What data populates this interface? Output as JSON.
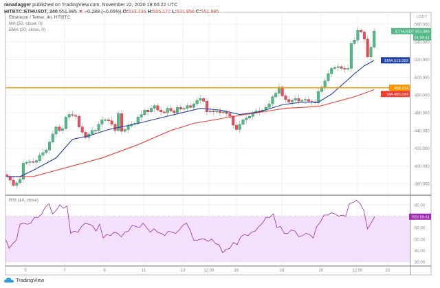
{
  "header": {
    "publisher": "ranadagger",
    "published_text": "published on TradingView.com, November 22, 2020 18:00:22 UTC",
    "symbol": "HITBTC:ETHUSDT, 240",
    "last": "551.985",
    "change": "−0.288 (−0.05%)",
    "o_label": "O:",
    "o": "533.736",
    "h_label": "H:",
    "h": "555.177",
    "l_label": "L:",
    "l": "531.856",
    "c_label": "C:",
    "c": "551.985"
  },
  "legend": {
    "title": "Ethereum / Tether, 4h, HITBTC",
    "ma": "MA (50, close, 0)",
    "ema": "EMA (20, close, 0)",
    "rsi": "RSI (14, close)"
  },
  "price_axis": {
    "unit": "USDT",
    "ticks": [
      380,
      400,
      420,
      440,
      460,
      480,
      500,
      520,
      540,
      560
    ],
    "tick_labels": [
      "380.000",
      "400.000",
      "420.000",
      "440.000",
      "460.000",
      "480.000",
      "500.000",
      "520.000",
      "540.000",
      "560.000"
    ],
    "range": [
      370,
      570
    ]
  },
  "rsi_axis": {
    "ticks": [
      30,
      40,
      50,
      60,
      70,
      80
    ],
    "tick_labels": [
      "30.00",
      "40.00",
      "50.00",
      "60.00",
      "70.00",
      "80.00"
    ],
    "band": [
      30,
      70
    ]
  },
  "time_axis": {
    "labels": [
      "5",
      "7",
      "9",
      "11",
      "13",
      "12:00",
      "16",
      "18",
      "20",
      "12:00",
      "23"
    ]
  },
  "badges": {
    "last_label": "ETHUSDT",
    "last_value": "551.985",
    "countdown": "01:59:41",
    "ema_label": "EMA",
    "ema_value": "519.093",
    "hline_value": "488.134",
    "ma_label": "MA",
    "ma_value": "485.094",
    "rsi_label": "RSI",
    "rsi_value": "69.61"
  },
  "colors": {
    "up": "#53b987",
    "down": "#eb4d5c",
    "ema": "#1e3fa0",
    "ma": "#f23b30",
    "hline": "#ff9800",
    "rsi": "#9c27b0",
    "rsi_band": "#f3e0fb"
  },
  "chart_data": {
    "type": "candlestick",
    "interval": "4h",
    "closes": [
      388,
      384,
      378,
      381,
      385,
      403,
      404,
      405,
      404,
      406,
      412,
      415,
      418,
      427,
      436,
      444,
      440,
      442,
      455,
      458,
      457,
      456,
      444,
      438,
      432,
      436,
      440,
      440,
      447,
      452,
      452,
      451,
      447,
      440,
      459,
      439,
      441,
      445,
      447,
      448,
      455,
      458,
      463,
      461,
      465,
      468,
      463,
      461,
      460,
      465,
      462,
      460,
      466,
      464,
      465,
      468,
      466,
      470,
      474,
      476,
      473,
      461,
      462,
      461,
      462,
      460,
      461,
      459,
      456,
      446,
      441,
      447,
      452,
      454,
      456,
      460,
      462,
      461,
      463,
      466,
      470,
      478,
      482,
      489,
      479,
      475,
      472,
      474,
      476,
      473,
      474,
      475,
      473,
      472,
      471,
      484,
      489,
      496,
      504,
      510,
      511,
      512,
      510,
      509,
      510,
      538,
      542,
      553,
      551,
      543,
      523,
      534,
      552
    ],
    "first_open": 390,
    "ma50": [
      [
        0,
        388
      ],
      [
        8,
        388
      ],
      [
        19,
        399
      ],
      [
        29,
        409
      ],
      [
        40,
        424
      ],
      [
        50,
        440
      ],
      [
        57,
        448
      ],
      [
        71,
        457
      ],
      [
        85,
        465
      ],
      [
        95,
        467
      ],
      [
        106,
        478
      ],
      [
        112,
        486
      ]
    ],
    "ema20": [
      [
        0,
        388
      ],
      [
        4,
        388
      ],
      [
        8,
        395
      ],
      [
        15,
        409
      ],
      [
        20,
        430
      ],
      [
        25,
        434
      ],
      [
        31,
        441
      ],
      [
        40,
        448
      ],
      [
        50,
        457
      ],
      [
        59,
        465
      ],
      [
        65,
        463
      ],
      [
        71,
        458
      ],
      [
        77,
        461
      ],
      [
        84,
        469
      ],
      [
        90,
        472
      ],
      [
        95,
        472
      ],
      [
        99,
        481
      ],
      [
        103,
        494
      ],
      [
        106,
        504
      ],
      [
        109,
        513
      ],
      [
        112,
        519
      ]
    ],
    "hline": 488.134,
    "rsi": [
      50,
      42,
      46,
      49,
      63,
      64,
      63,
      64,
      69,
      69,
      72,
      78,
      81,
      72,
      75,
      80,
      77,
      79,
      55,
      57,
      56,
      61,
      64,
      63,
      62,
      57,
      63,
      51,
      54,
      53,
      56,
      55,
      52,
      56,
      57,
      62,
      61,
      60,
      64,
      60,
      56,
      59,
      56,
      55,
      53,
      57,
      56,
      55,
      58,
      62,
      64,
      58,
      49,
      49,
      50,
      50,
      48,
      50,
      46,
      45,
      38,
      41,
      42,
      47,
      45,
      52,
      54,
      53,
      56,
      57,
      61,
      64,
      69,
      69,
      72,
      60,
      61,
      55,
      55,
      58,
      57,
      52,
      53,
      55,
      54,
      51,
      61,
      65,
      71,
      71,
      73,
      72,
      70,
      71,
      70,
      81,
      82,
      84,
      81,
      75,
      59,
      64,
      69.61
    ]
  },
  "footer": {
    "brand": "TradingView"
  }
}
